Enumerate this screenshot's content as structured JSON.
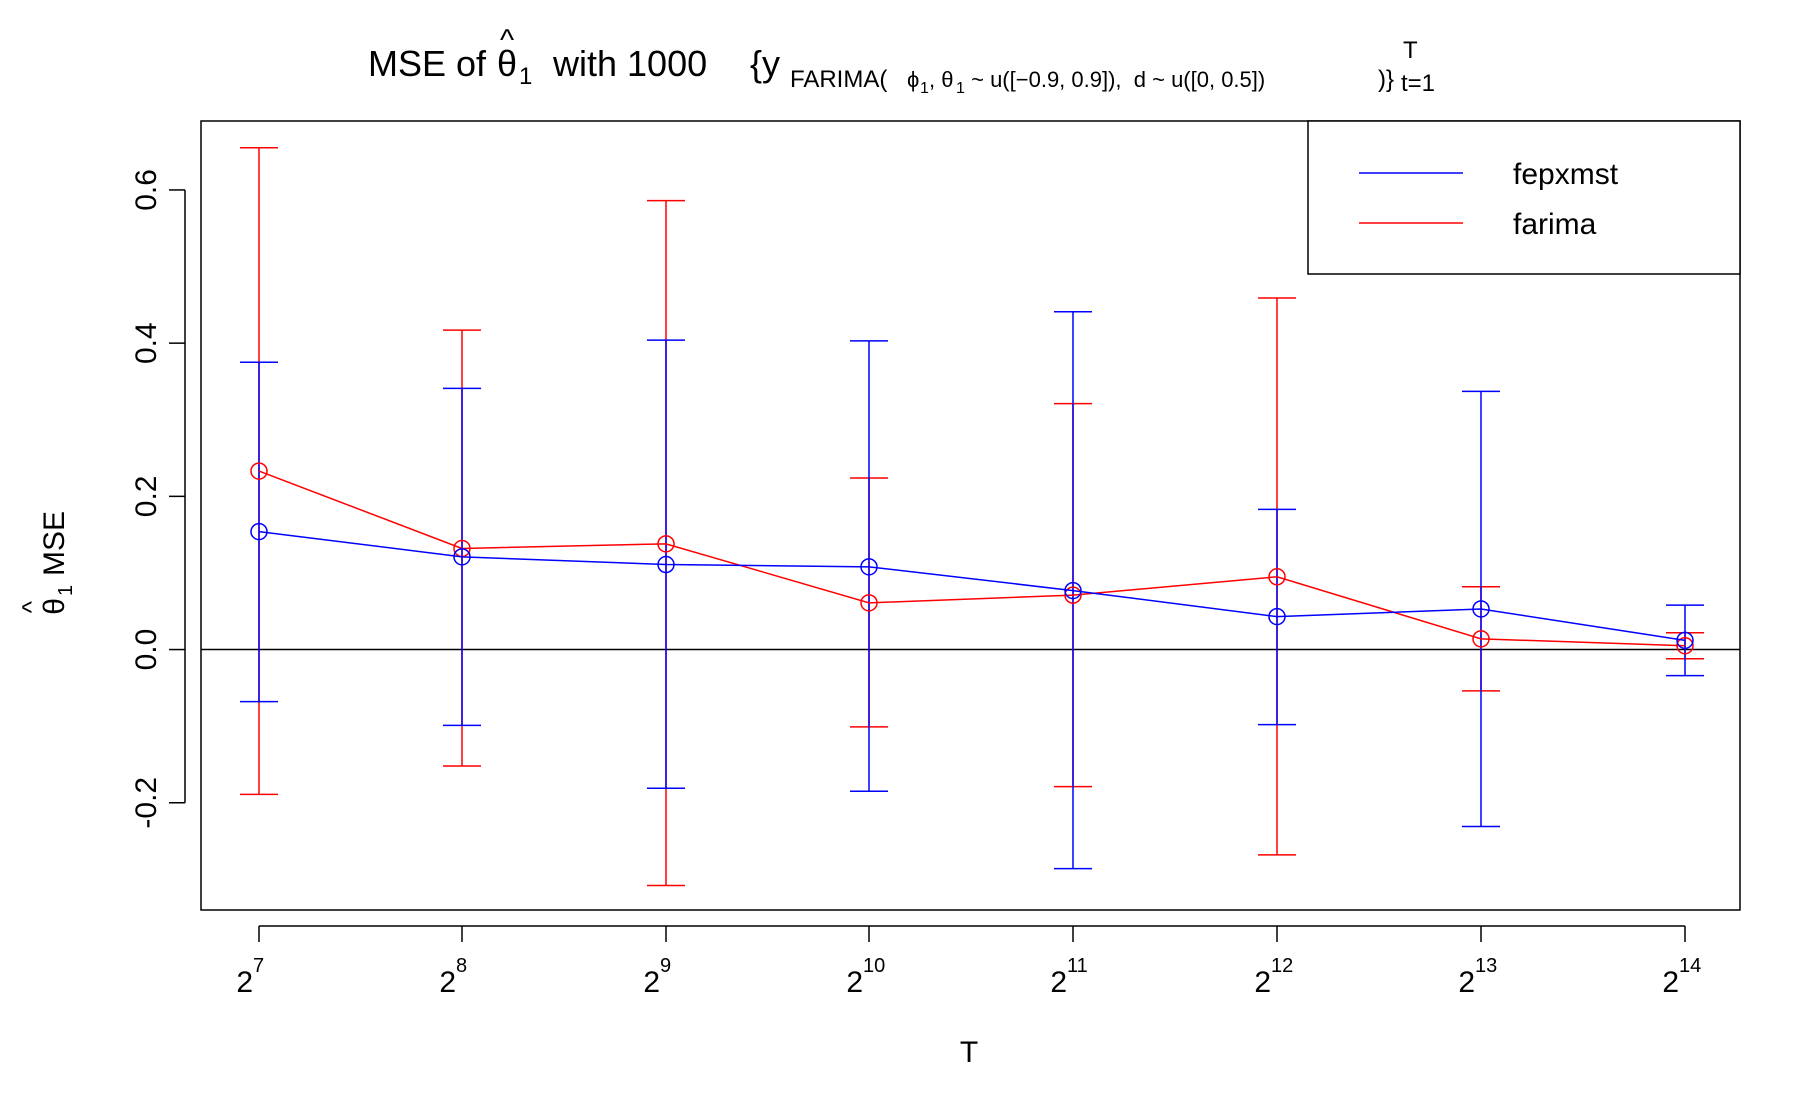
{
  "chart_data": {
    "type": "line",
    "title": {
      "main": "MSE of",
      "symbol": "θ",
      "hat": "^",
      "symbol_sub": "1",
      "with": "with 1000",
      "brace_open": "{y",
      "farima_sub": "FARIMA(",
      "phi": "ϕ",
      "phi_sub": "1",
      "comma_theta": ", θ",
      "theta_sub": "1",
      "dist": " ~ u([−0.9, 0.9]),  d ~ u([0, 0.5])",
      "brace_close": ")}",
      "t_super": "T",
      "t_sub": "t=1"
    },
    "xlabel": "T",
    "ylabel": {
      "symbol": "θ",
      "hat": "^",
      "sub": "1",
      "text": "MSE"
    },
    "x_tick_base": "2",
    "x_exponents": [
      "7",
      "8",
      "9",
      "10",
      "11",
      "12",
      "13",
      "14"
    ],
    "y_ticks": [
      -0.2,
      0.0,
      0.2,
      0.4,
      0.6
    ],
    "y_tick_labels": [
      "-0.2",
      "0.0",
      "0.2",
      "0.4",
      "0.6"
    ],
    "ylim": [
      -0.34,
      0.69
    ],
    "reference_line_y": 0,
    "legend_position": "top-right",
    "series": [
      {
        "name": "fepxmst",
        "color": "#0000ff",
        "values": [
          0.154,
          0.121,
          0.111,
          0.108,
          0.077,
          0.043,
          0.053,
          0.012
        ],
        "upper": [
          0.375,
          0.341,
          0.404,
          0.403,
          0.441,
          0.183,
          0.337,
          0.058
        ],
        "lower": [
          -0.068,
          -0.099,
          -0.181,
          -0.185,
          -0.286,
          -0.098,
          -0.231,
          -0.034
        ]
      },
      {
        "name": "farima",
        "color": "#ff0000",
        "values": [
          0.233,
          0.132,
          0.138,
          0.061,
          0.071,
          0.095,
          0.014,
          0.005
        ],
        "upper": [
          0.655,
          0.417,
          0.586,
          0.224,
          0.321,
          0.459,
          0.082,
          0.022
        ],
        "lower": [
          -0.189,
          -0.152,
          -0.308,
          -0.101,
          -0.179,
          -0.268,
          -0.054,
          -0.012
        ]
      }
    ]
  }
}
